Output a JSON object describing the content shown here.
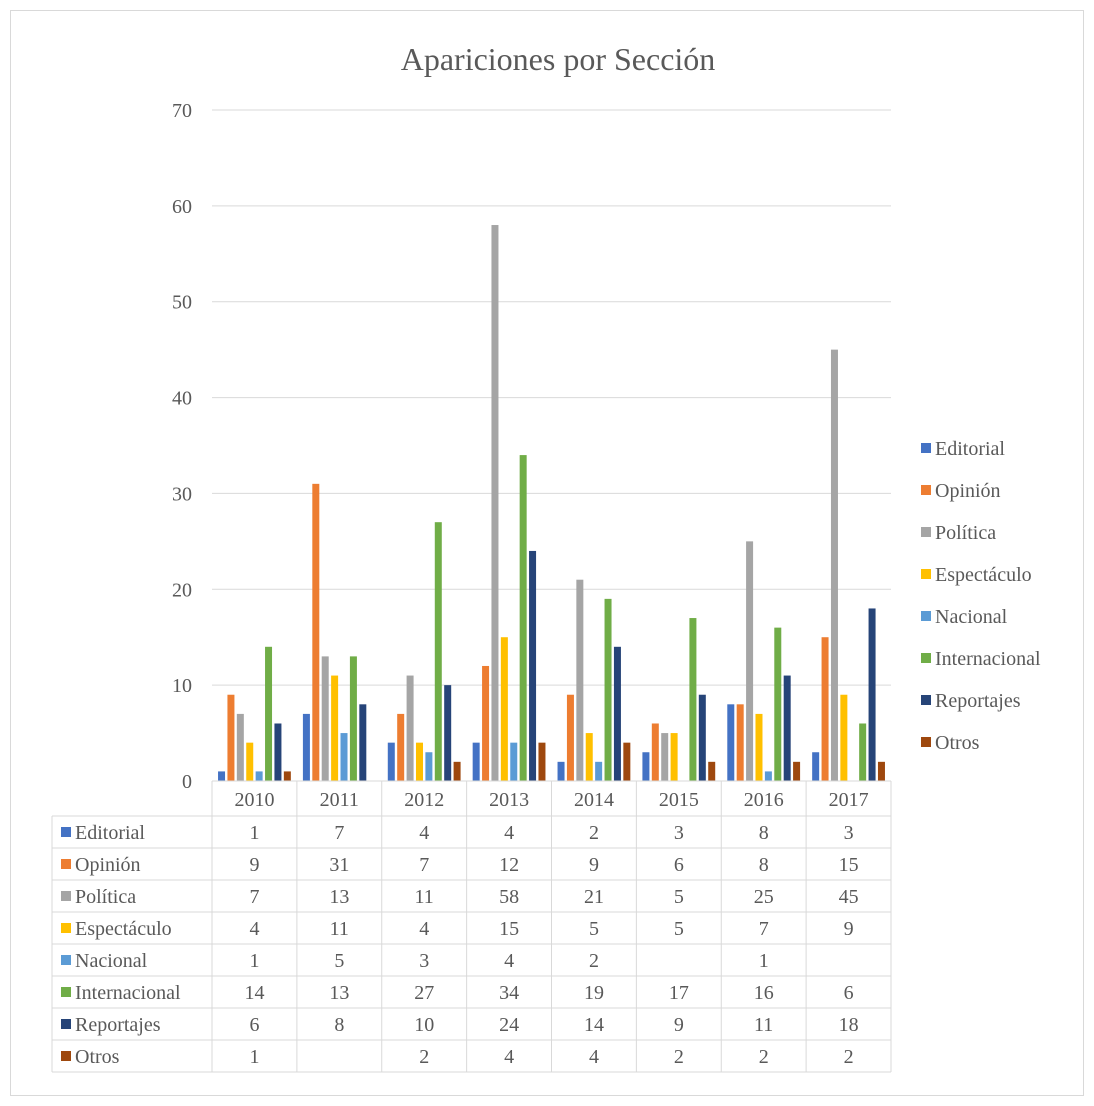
{
  "chart_data": {
    "type": "bar",
    "title": "Apariciones por Sección",
    "xlabel": "",
    "ylabel": "",
    "ylim": [
      0,
      70
    ],
    "yticks": [
      0,
      10,
      20,
      30,
      40,
      50,
      60,
      70
    ],
    "grid": true,
    "legend_position": "right",
    "data_table": true,
    "categories": [
      "2010",
      "2011",
      "2012",
      "2013",
      "2014",
      "2015",
      "2016",
      "2017"
    ],
    "series": [
      {
        "name": "Editorial",
        "color": "#4472c4",
        "values": [
          1,
          7,
          4,
          4,
          2,
          3,
          8,
          3
        ]
      },
      {
        "name": "Opinión",
        "color": "#ed7d31",
        "values": [
          9,
          31,
          7,
          12,
          9,
          6,
          8,
          15
        ]
      },
      {
        "name": "Política",
        "color": "#a5a5a5",
        "values": [
          7,
          13,
          11,
          58,
          21,
          5,
          25,
          45
        ]
      },
      {
        "name": "Espectáculo",
        "color": "#ffc000",
        "values": [
          4,
          11,
          4,
          15,
          5,
          5,
          7,
          9
        ]
      },
      {
        "name": "Nacional",
        "color": "#5b9bd5",
        "values": [
          1,
          5,
          3,
          4,
          2,
          null,
          1,
          null
        ]
      },
      {
        "name": "Internacional",
        "color": "#70ad47",
        "values": [
          14,
          13,
          27,
          34,
          19,
          17,
          16,
          6
        ]
      },
      {
        "name": "Reportajes",
        "color": "#264478",
        "values": [
          6,
          8,
          10,
          24,
          14,
          9,
          11,
          18
        ]
      },
      {
        "name": "Otros",
        "color": "#9e480e",
        "values": [
          1,
          null,
          2,
          4,
          4,
          2,
          2,
          2
        ]
      }
    ]
  }
}
